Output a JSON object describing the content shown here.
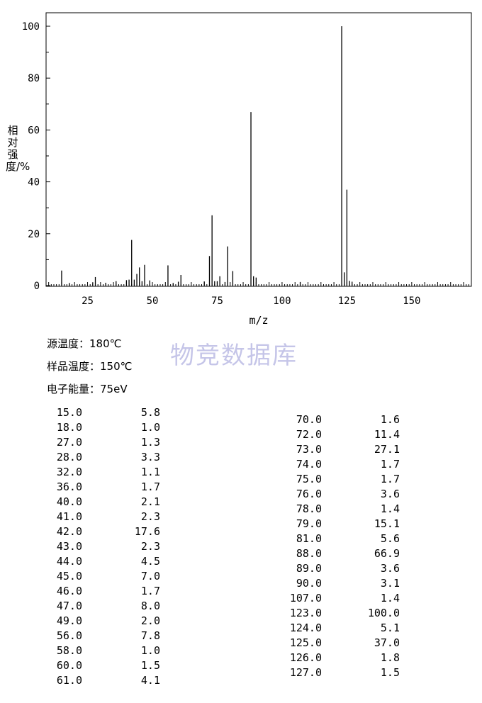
{
  "chart_data": {
    "type": "bar",
    "ylabel": "相对强度/%",
    "xlabel": "m/z",
    "xlim": [
      9,
      173
    ],
    "ylim": [
      0,
      105
    ],
    "xticks": [
      25,
      50,
      75,
      100,
      125,
      150
    ],
    "yticks": [
      0,
      20,
      40,
      60,
      80,
      100
    ],
    "grid": false,
    "peaks": [
      {
        "mz": 15,
        "intensity": 5.8
      },
      {
        "mz": 18,
        "intensity": 1.0
      },
      {
        "mz": 27,
        "intensity": 1.3
      },
      {
        "mz": 28,
        "intensity": 3.3
      },
      {
        "mz": 32,
        "intensity": 1.1
      },
      {
        "mz": 36,
        "intensity": 1.7
      },
      {
        "mz": 40,
        "intensity": 2.1
      },
      {
        "mz": 41,
        "intensity": 2.3
      },
      {
        "mz": 42,
        "intensity": 17.6
      },
      {
        "mz": 43,
        "intensity": 2.3
      },
      {
        "mz": 44,
        "intensity": 4.5
      },
      {
        "mz": 45,
        "intensity": 7.0
      },
      {
        "mz": 46,
        "intensity": 1.7
      },
      {
        "mz": 47,
        "intensity": 8.0
      },
      {
        "mz": 49,
        "intensity": 2.0
      },
      {
        "mz": 56,
        "intensity": 7.8
      },
      {
        "mz": 58,
        "intensity": 1.0
      },
      {
        "mz": 60,
        "intensity": 1.5
      },
      {
        "mz": 61,
        "intensity": 4.1
      },
      {
        "mz": 70,
        "intensity": 1.6
      },
      {
        "mz": 72,
        "intensity": 11.4
      },
      {
        "mz": 73,
        "intensity": 27.1
      },
      {
        "mz": 74,
        "intensity": 1.7
      },
      {
        "mz": 75,
        "intensity": 1.7
      },
      {
        "mz": 76,
        "intensity": 3.6
      },
      {
        "mz": 78,
        "intensity": 1.4
      },
      {
        "mz": 79,
        "intensity": 15.1
      },
      {
        "mz": 81,
        "intensity": 5.6
      },
      {
        "mz": 88,
        "intensity": 66.9
      },
      {
        "mz": 89,
        "intensity": 3.6
      },
      {
        "mz": 90,
        "intensity": 3.1
      },
      {
        "mz": 107,
        "intensity": 1.4
      },
      {
        "mz": 123,
        "intensity": 100.0
      },
      {
        "mz": 124,
        "intensity": 5.1
      },
      {
        "mz": 125,
        "intensity": 37.0
      },
      {
        "mz": 126,
        "intensity": 1.8
      },
      {
        "mz": 127,
        "intensity": 1.5
      }
    ]
  },
  "watermark": "物竞数据库",
  "conditions": {
    "source_temp": "源温度：180℃",
    "sample_temp": "样品温度：150℃",
    "electron_energy": "电子能量：75eV"
  },
  "peak_table": {
    "left": [
      {
        "mz": "15.0",
        "intensity": "5.8"
      },
      {
        "mz": "18.0",
        "intensity": "1.0"
      },
      {
        "mz": "27.0",
        "intensity": "1.3"
      },
      {
        "mz": "28.0",
        "intensity": "3.3"
      },
      {
        "mz": "32.0",
        "intensity": "1.1"
      },
      {
        "mz": "36.0",
        "intensity": "1.7"
      },
      {
        "mz": "40.0",
        "intensity": "2.1"
      },
      {
        "mz": "41.0",
        "intensity": "2.3"
      },
      {
        "mz": "42.0",
        "intensity": "17.6"
      },
      {
        "mz": "43.0",
        "intensity": "2.3"
      },
      {
        "mz": "44.0",
        "intensity": "4.5"
      },
      {
        "mz": "45.0",
        "intensity": "7.0"
      },
      {
        "mz": "46.0",
        "intensity": "1.7"
      },
      {
        "mz": "47.0",
        "intensity": "8.0"
      },
      {
        "mz": "49.0",
        "intensity": "2.0"
      },
      {
        "mz": "56.0",
        "intensity": "7.8"
      },
      {
        "mz": "58.0",
        "intensity": "1.0"
      },
      {
        "mz": "60.0",
        "intensity": "1.5"
      },
      {
        "mz": "61.0",
        "intensity": "4.1"
      }
    ],
    "right": [
      {
        "mz": "70.0",
        "intensity": "1.6"
      },
      {
        "mz": "72.0",
        "intensity": "11.4"
      },
      {
        "mz": "73.0",
        "intensity": "27.1"
      },
      {
        "mz": "74.0",
        "intensity": "1.7"
      },
      {
        "mz": "75.0",
        "intensity": "1.7"
      },
      {
        "mz": "76.0",
        "intensity": "3.6"
      },
      {
        "mz": "78.0",
        "intensity": "1.4"
      },
      {
        "mz": "79.0",
        "intensity": "15.1"
      },
      {
        "mz": "81.0",
        "intensity": "5.6"
      },
      {
        "mz": "88.0",
        "intensity": "66.9"
      },
      {
        "mz": "89.0",
        "intensity": "3.6"
      },
      {
        "mz": "90.0",
        "intensity": "3.1"
      },
      {
        "mz": "107.0",
        "intensity": "1.4"
      },
      {
        "mz": "123.0",
        "intensity": "100.0"
      },
      {
        "mz": "124.0",
        "intensity": "5.1"
      },
      {
        "mz": "125.0",
        "intensity": "37.0"
      },
      {
        "mz": "126.0",
        "intensity": "1.8"
      },
      {
        "mz": "127.0",
        "intensity": "1.5"
      }
    ]
  }
}
